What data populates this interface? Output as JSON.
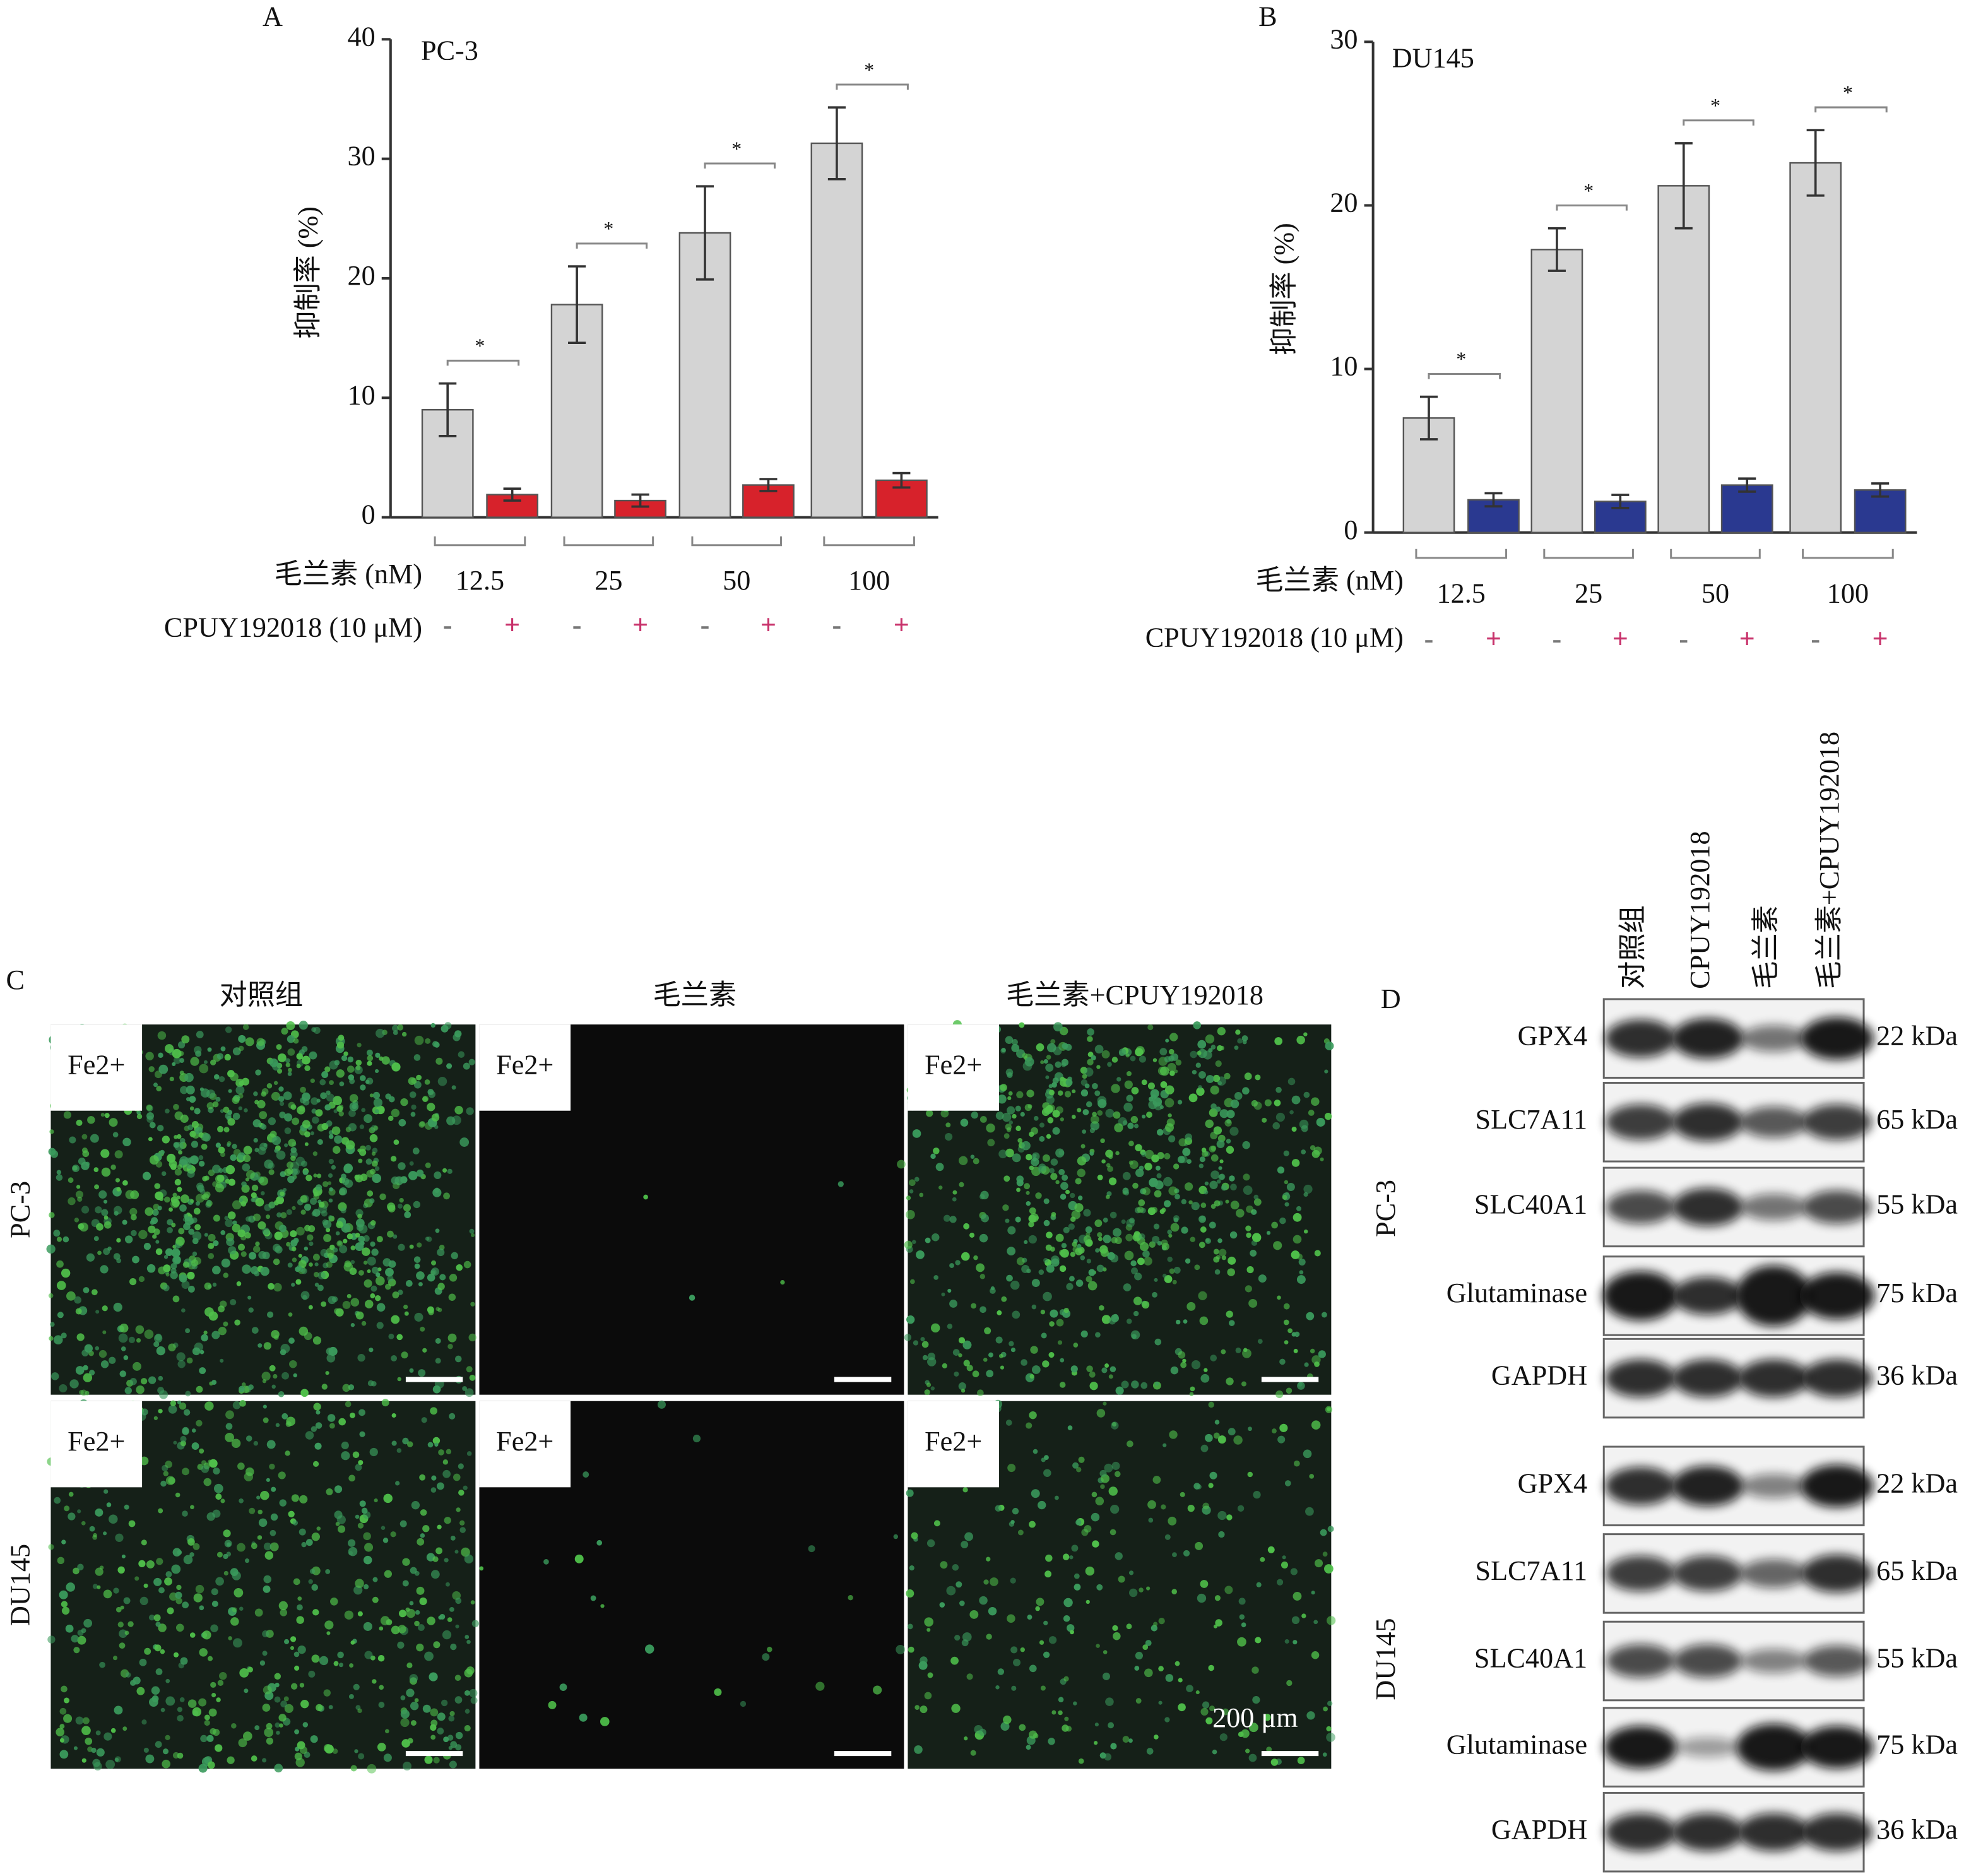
{
  "chart_data": [
    {
      "type": "bar",
      "panel": "A",
      "title": "PC-3",
      "y_label": "抑制率 (%)",
      "x_label": "毛兰素 (nM)",
      "row_label": "CPUY192018 (10 μM)",
      "categories": [
        "12.5",
        "25",
        "50",
        "100"
      ],
      "series": [
        {
          "name": "-",
          "color": "#d4d4d4",
          "values": [
            9,
            17.8,
            23.8,
            31.3
          ],
          "errors": [
            2.2,
            3.2,
            3.9,
            3
          ]
        },
        {
          "name": "+",
          "color": "#d7222b",
          "values": [
            1.9,
            1.4,
            2.7,
            3.1
          ],
          "errors": [
            0.5,
            0.5,
            0.5,
            0.6
          ]
        }
      ],
      "significance": "*",
      "ylim": [
        0,
        40
      ],
      "yticks": [
        0,
        10,
        20,
        30,
        40
      ]
    },
    {
      "type": "bar",
      "panel": "B",
      "title": "DU145",
      "y_label": "抑制率 (%)",
      "x_label": "毛兰素 (nM)",
      "row_label": "CPUY192018 (10 μM)",
      "categories": [
        "12.5",
        "25",
        "50",
        "100"
      ],
      "series": [
        {
          "name": "-",
          "color": "#d4d4d4",
          "values": [
            7,
            17.3,
            21.2,
            22.6
          ],
          "errors": [
            1.3,
            1.3,
            2.6,
            2
          ]
        },
        {
          "name": "+",
          "color": "#2a3990",
          "values": [
            2,
            1.9,
            2.9,
            2.6
          ],
          "errors": [
            0.4,
            0.4,
            0.4,
            0.4
          ]
        }
      ],
      "significance": "*",
      "ylim": [
        0,
        30
      ],
      "yticks": [
        0,
        10,
        20,
        30
      ]
    }
  ],
  "panel_c": {
    "panel": "C",
    "columns": [
      "对照组",
      "毛兰素",
      "毛兰素+CPUY192018"
    ],
    "rows": [
      "PC-3",
      "DU145"
    ],
    "inset_label": "Fe2+",
    "scale_bar": "200 μm"
  },
  "panel_d": {
    "panel": "D",
    "lanes": [
      "对照组",
      "CPUY192018",
      "毛兰素",
      "毛兰素+CPUY192018"
    ],
    "groups": [
      {
        "cell": "PC-3",
        "proteins": [
          {
            "name": "GPX4",
            "size": "22 kDa"
          },
          {
            "name": "SLC7A11",
            "size": "65 kDa"
          },
          {
            "name": "SLC40A1",
            "size": "55 kDa"
          },
          {
            "name": "Glutaminase",
            "size": "75 kDa"
          },
          {
            "name": "GAPDH",
            "size": "36 kDa"
          }
        ]
      },
      {
        "cell": "DU145",
        "proteins": [
          {
            "name": "GPX4",
            "size": "22 kDa"
          },
          {
            "name": "SLC7A11",
            "size": "65 kDa"
          },
          {
            "name": "SLC40A1",
            "size": "55 kDa"
          },
          {
            "name": "Glutaminase",
            "size": "75 kDa"
          },
          {
            "name": "GAPDH",
            "size": "36 kDa"
          }
        ]
      }
    ]
  }
}
